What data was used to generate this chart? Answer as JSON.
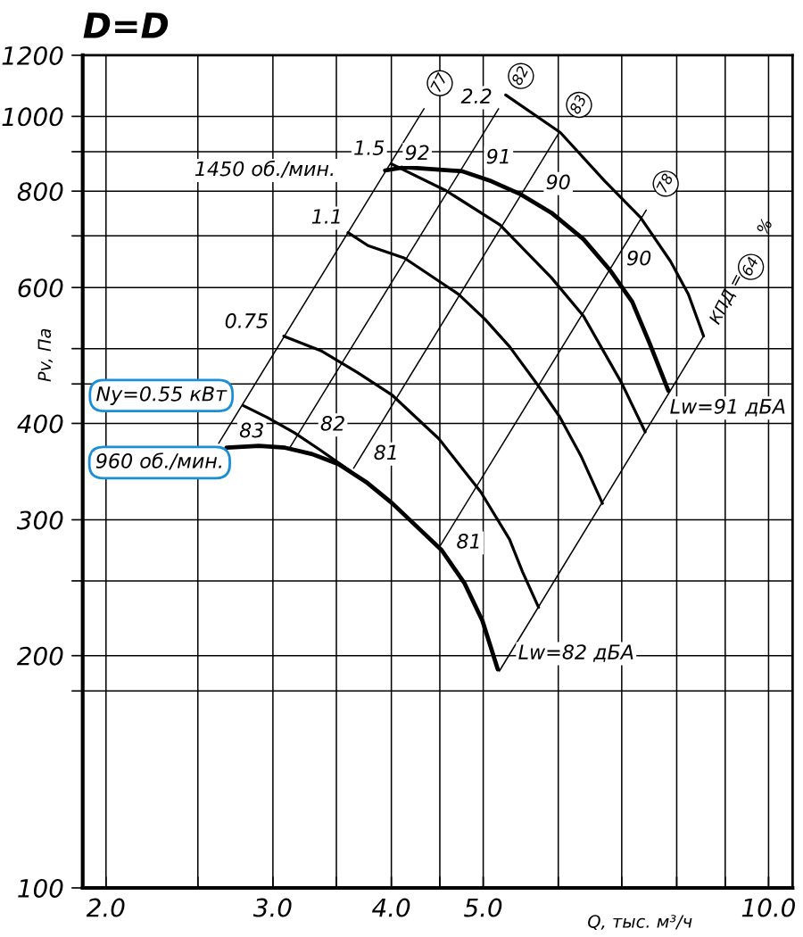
{
  "chart_data": {
    "type": "line",
    "title": "D=D",
    "xlabel": "Q, тыс. м³/ч",
    "ylabel": "Pv, Па",
    "log": "xy",
    "grid": true,
    "marker": "none",
    "line_style": "solid",
    "xlim": [
      1.89,
      10.6
    ],
    "ylim": [
      100,
      1200
    ],
    "xticks": [
      {
        "value": 2,
        "label": "2.0"
      },
      {
        "value": 2.5,
        "label": null
      },
      {
        "value": 3,
        "label": "3.0"
      },
      {
        "value": 3.5,
        "label": null
      },
      {
        "value": 4,
        "label": "4.0"
      },
      {
        "value": 4.5,
        "label": null
      },
      {
        "value": 5,
        "label": "5.0"
      },
      {
        "value": 6,
        "label": null
      },
      {
        "value": 7,
        "label": null
      },
      {
        "value": 8,
        "label": null
      },
      {
        "value": 9,
        "label": null
      },
      {
        "value": 10,
        "label": "10.0"
      }
    ],
    "yticks": [
      100,
      {
        "value": 180,
        "label": null
      },
      200,
      {
        "value": 250,
        "label": null
      },
      300,
      400,
      {
        "value": 450,
        "label": null
      },
      {
        "value": 500,
        "label": null
      },
      600,
      {
        "value": 700,
        "label": null
      },
      800,
      {
        "value": 900,
        "label": null
      },
      1000,
      1200
    ],
    "series": [
      {
        "color": "#000000",
        "x": [
          2.68,
          2.9,
          3.09,
          3.3,
          3.52,
          3.76,
          4.01,
          4.28,
          4.52,
          4.78,
          4.99,
          5.18
        ],
        "values": [
          372,
          374,
          372,
          365,
          354,
          336,
          315,
          292,
          274,
          248,
          222,
          192
        ]
      },
      {
        "color": "#000000",
        "x": [
          3.94,
          4.13,
          4.75,
          5.1,
          5.48,
          5.9,
          6.38,
          6.81,
          7.18,
          7.49,
          7.84
        ],
        "values": [
          851,
          859,
          849,
          824,
          792,
          750,
          693,
          631,
          575,
          508,
          441
        ]
      },
      {
        "color": "#000000",
        "x": [
          2.79,
          2.96,
          3.16,
          3.37,
          3.62
        ],
        "values": [
          422,
          407,
          389,
          369,
          347
        ]
      },
      {
        "color": "#000000",
        "x": [
          3.08,
          3.37,
          3.68,
          4.01,
          4.49,
          4.97,
          5.33,
          5.5,
          5.72
        ],
        "values": [
          519,
          497,
          466,
          435,
          382,
          326,
          283,
          257,
          231
        ]
      },
      {
        "color": "#000000",
        "x": [
          3.6,
          3.78,
          4.13,
          4.71,
          5.02,
          5.33,
          5.72,
          6.02,
          6.34,
          6.68
        ],
        "values": [
          707,
          680,
          655,
          588,
          546,
          503,
          447,
          408,
          363,
          315
        ]
      },
      {
        "color": "#000000",
        "x": [
          4.0,
          4.57,
          5.21,
          5.9,
          6.38,
          7.0,
          7.41
        ],
        "values": [
          868,
          801,
          723,
          618,
          551,
          451,
          390
        ]
      },
      {
        "color": "#000000",
        "x": [
          5.28,
          6.03,
          6.72,
          7.33,
          7.88,
          8.23,
          8.54
        ],
        "values": [
          1066,
          953,
          824,
          739,
          649,
          588,
          519
        ]
      },
      {
        "color": "#000000",
        "x": [
          2.63,
          4.33
        ],
        "values": [
          377,
          1023
        ]
      },
      {
        "color": "#000000",
        "x": [
          3.13,
          5.19
        ],
        "values": [
          373,
          1023
        ]
      },
      {
        "color": "#000000",
        "x": [
          3.65,
          6.0
        ],
        "values": [
          350,
          949
        ]
      },
      {
        "color": "#000000",
        "x": [
          4.49,
          7.43
        ],
        "values": [
          276,
          756
        ]
      },
      {
        "color": "#000000",
        "x": [
          5.2,
          8.54
        ],
        "values": [
          191,
          519
        ]
      }
    ],
    "annotations": [
      "Ny=0.55 кВт",
      "960 об./мин.",
      {
        "text": "77",
        "x": 4.5,
        "y": 1104
      },
      {
        "text": "82",
        "x": 5.48,
        "y": 1128
      },
      {
        "text": "83",
        "x": 6.31,
        "y": 1035
      },
      {
        "text": "78",
        "x": 7.79,
        "y": 818
      },
      {
        "text": "64",
        "x": 9.58,
        "y": 638
      },
      "КПД =",
      "%",
      "Lw=82 дБА",
      "Lw=91 дБА",
      "1450 об./мин.",
      "0.75",
      {
        "text": "1.1",
        "x": 3.42,
        "y": 738
      },
      {
        "text": "1.5",
        "x": 3.79,
        "y": 906
      },
      {
        "text": "2.2",
        "x": 4.92,
        "y": 1057
      },
      {
        "text": "92",
        "x": 4.26,
        "y": 893
      },
      {
        "text": "91",
        "x": 5.19,
        "y": 883
      },
      {
        "text": "90",
        "x": 6.0,
        "y": 818
      },
      {
        "text": "90",
        "x": 7.3,
        "y": 652
      },
      {
        "text": "83",
        "x": 2.85,
        "y": 390
      },
      {
        "text": "82",
        "x": 3.47,
        "y": 398
      },
      {
        "text": "81",
        "x": 3.95,
        "y": 365
      },
      {
        "text": "81",
        "x": 4.83,
        "y": 280
      }
    ]
  }
}
